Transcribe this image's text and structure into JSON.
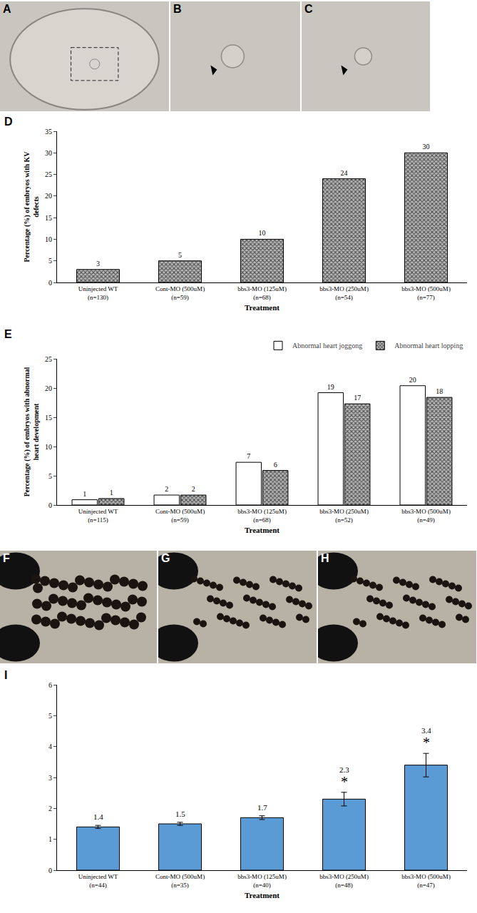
{
  "photo_rows": [
    [
      "A",
      "B",
      "C"
    ],
    [
      "F",
      "G",
      "H"
    ]
  ],
  "chart_data": [
    {
      "panel_label": "D",
      "type": "bar",
      "categories": [
        "Uninjected WT\n(n=130)",
        "Cont-MO (500uM)\n(n=59)",
        "bbs3-MO (125uM)\n(n=68)",
        "bbs3-MO (250uM)\n(n=54)",
        "bbs3-MO (500uM)\n(n=77)"
      ],
      "values": [
        3,
        5,
        10,
        24,
        30
      ],
      "color": "#555555",
      "marker": "checkered",
      "y_label": "Percentage (%) of embryos with KV\ndefects",
      "x_label": "Treatment",
      "ylim": [
        0,
        35
      ],
      "yticks": [
        0,
        5,
        10,
        15,
        20,
        25,
        30,
        35
      ],
      "data_labels": true,
      "grid": false
    },
    {
      "panel_label": "E",
      "type": "bar",
      "categories": [
        "Uninjected WT\n(n=115)",
        "Cont-MO (500uM)\n(n=59)",
        "bbs3-MO (125uM)\n(n=68)",
        "bbs3-MO (250uM)\n(n=52)",
        "bbs3-MO (500uM)\n(n=49)"
      ],
      "series": [
        {
          "name": "Abnormal heart joggong",
          "color": "#ffffff",
          "marker": "plain",
          "values": [
            0.9,
            1.7,
            7.3,
            19.2,
            20.4
          ],
          "value_labels": [
            "1",
            "2",
            "7",
            "19",
            "20"
          ]
        },
        {
          "name": "Abnormal heart lopping",
          "color": "#555555",
          "marker": "checkered",
          "values": [
            1.1,
            1.7,
            5.9,
            17.3,
            18.4
          ],
          "value_labels": [
            "1",
            "2",
            "6",
            "17",
            "18"
          ]
        }
      ],
      "y_label": "Percentage (%) of embryos with abnormal\nheart development",
      "x_label": "Treatment",
      "ylim": [
        0,
        25
      ],
      "yticks": [
        0,
        5,
        10,
        15,
        20,
        25
      ],
      "legend": "top right",
      "data_labels": true,
      "grid": false
    },
    {
      "panel_label": "I",
      "type": "bar",
      "categories": [
        "Uninjected WT\n(n=44)",
        "Cont-MO (500uM)\n(n=35)",
        "bbs3-MO (125uM)\n(n=40)",
        "bbs3-MO (250uM)\n(n=48)",
        "bbs3-MO (500uM)\n(n=47)"
      ],
      "values": [
        1.4,
        1.5,
        1.7,
        2.3,
        3.4
      ],
      "errors": [
        0.05,
        0.05,
        0.06,
        0.22,
        0.38
      ],
      "significance": [
        null,
        null,
        null,
        "*",
        "*"
      ],
      "color": "#5b9bd5",
      "marker": "plain",
      "x_label": "Treatment",
      "ylim": [
        0,
        6
      ],
      "yticks": [
        0,
        1,
        2,
        3,
        4,
        5,
        6
      ],
      "data_labels": true,
      "grid": false
    }
  ]
}
